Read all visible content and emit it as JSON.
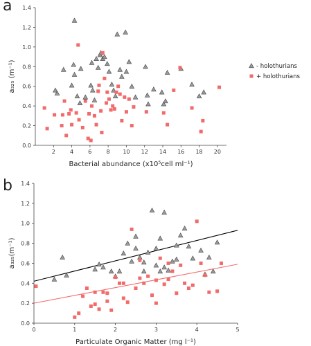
{
  "panels": {
    "a": {
      "letter": "a"
    },
    "b": {
      "letter": "b"
    }
  },
  "colors": {
    "axis": "#444444",
    "minus_fill": "#9a9a9a",
    "minus_stroke": "#444444",
    "plus_fill": "#f26b6b",
    "fit_minus": "#000000",
    "fit_plus": "#f26b6b"
  },
  "chart_data": [
    {
      "type": "scatter",
      "panel": "a",
      "title": "",
      "xlabel": "Bacterial abundance (x10⁵cell ml⁻¹)",
      "ylabel": "a₃₂₅ (m⁻¹)",
      "xlim": [
        0,
        21
      ],
      "ylim": [
        0,
        1.4
      ],
      "xticks": [
        2,
        4,
        6,
        8,
        10,
        12,
        14,
        16,
        18,
        20
      ],
      "yticks": [
        0,
        0.2,
        0.4,
        0.6,
        0.8,
        1.0,
        1.2,
        1.4
      ],
      "ytick_labels": [
        "0.0",
        "0.2",
        "0.4",
        "0.6",
        "0.8",
        "1.0",
        "1.2",
        "1.4"
      ],
      "legend_position": "right",
      "series": [
        {
          "name": "- holothurians",
          "marker": "triangle",
          "points": [
            [
              2.2,
              0.56
            ],
            [
              2.4,
              0.53
            ],
            [
              3.1,
              0.77
            ],
            [
              4.3,
              1.27
            ],
            [
              4.2,
              0.82
            ],
            [
              4.3,
              0.72
            ],
            [
              4.0,
              0.61
            ],
            [
              4.6,
              0.5
            ],
            [
              4.9,
              0.43
            ],
            [
              5.0,
              0.78
            ],
            [
              5.5,
              0.49
            ],
            [
              6.1,
              0.61
            ],
            [
              6.2,
              0.84
            ],
            [
              6.3,
              0.56
            ],
            [
              6.5,
              0.46
            ],
            [
              6.7,
              0.88
            ],
            [
              6.9,
              0.79
            ],
            [
              7.1,
              0.92
            ],
            [
              7.2,
              0.94
            ],
            [
              7.4,
              0.88
            ],
            [
              7.6,
              0.9
            ],
            [
              7.9,
              0.83
            ],
            [
              8.1,
              0.75
            ],
            [
              8.4,
              0.62
            ],
            [
              8.6,
              0.56
            ],
            [
              8.8,
              0.5
            ],
            [
              9.0,
              1.13
            ],
            [
              9.3,
              0.77
            ],
            [
              9.5,
              0.7
            ],
            [
              9.9,
              1.15
            ],
            [
              10.0,
              0.75
            ],
            [
              10.3,
              0.85
            ],
            [
              10.6,
              0.6
            ],
            [
              11.0,
              0.49
            ],
            [
              12.1,
              0.8
            ],
            [
              12.3,
              0.51
            ],
            [
              12.4,
              0.42
            ],
            [
              13.0,
              0.57
            ],
            [
              13.9,
              0.54
            ],
            [
              14.1,
              0.42
            ],
            [
              14.3,
              0.45
            ],
            [
              14.5,
              0.74
            ],
            [
              16.0,
              0.78
            ],
            [
              17.2,
              0.62
            ],
            [
              18.0,
              0.5
            ],
            [
              18.5,
              0.54
            ]
          ]
        },
        {
          "name": "+ holothurians",
          "marker": "square",
          "points": [
            [
              1.0,
              0.38
            ],
            [
              1.3,
              0.17
            ],
            [
              2.1,
              0.31
            ],
            [
              2.9,
              0.2
            ],
            [
              3.0,
              0.31
            ],
            [
              3.2,
              0.45
            ],
            [
              3.4,
              0.1
            ],
            [
              3.7,
              0.32
            ],
            [
              3.9,
              0.36
            ],
            [
              4.0,
              0.21
            ],
            [
              4.5,
              0.33
            ],
            [
              4.7,
              1.02
            ],
            [
              4.8,
              0.26
            ],
            [
              5.2,
              0.18
            ],
            [
              5.5,
              0.45
            ],
            [
              5.8,
              0.07
            ],
            [
              5.9,
              0.32
            ],
            [
              6.1,
              0.05
            ],
            [
              6.2,
              0.4
            ],
            [
              6.5,
              0.3
            ],
            [
              6.7,
              0.21
            ],
            [
              6.9,
              0.55
            ],
            [
              7.0,
              0.61
            ],
            [
              7.2,
              0.35
            ],
            [
              7.3,
              0.13
            ],
            [
              7.4,
              0.94
            ],
            [
              7.6,
              0.68
            ],
            [
              7.8,
              0.43
            ],
            [
              7.9,
              0.54
            ],
            [
              8.1,
              0.47
            ],
            [
              8.3,
              0.36
            ],
            [
              8.5,
              0.4
            ],
            [
              8.7,
              0.37
            ],
            [
              8.9,
              0.54
            ],
            [
              9.1,
              0.6
            ],
            [
              9.3,
              0.52
            ],
            [
              9.5,
              0.25
            ],
            [
              9.8,
              0.49
            ],
            [
              10.0,
              0.34
            ],
            [
              10.3,
              0.47
            ],
            [
              10.6,
              0.2
            ],
            [
              10.8,
              0.39
            ],
            [
              12.2,
              0.34
            ],
            [
              14.1,
              0.33
            ],
            [
              14.5,
              0.21
            ],
            [
              15.2,
              0.56
            ],
            [
              15.9,
              0.79
            ],
            [
              17.2,
              0.38
            ],
            [
              18.2,
              0.14
            ],
            [
              18.4,
              0.25
            ],
            [
              20.2,
              0.59
            ]
          ]
        }
      ]
    },
    {
      "type": "scatter",
      "panel": "b",
      "title": "",
      "xlabel": "Particulate Organic Matter (mg l⁻¹)",
      "ylabel": "a₃₂₅(m⁻¹)",
      "xlim": [
        0,
        5
      ],
      "ylim": [
        0,
        1.4
      ],
      "xticks": [
        0,
        1,
        2,
        3,
        4,
        5
      ],
      "yticks": [
        0,
        0.2,
        0.4,
        0.6,
        0.8,
        1.0,
        1.2,
        1.4
      ],
      "ytick_labels": [
        "0.0",
        "0.2",
        "0.4",
        "0.6",
        "0.8",
        "1.0",
        "1.2",
        "1.4"
      ],
      "series": [
        {
          "name": "- holothurians",
          "marker": "triangle",
          "fit": [
            [
              0,
              0.42
            ],
            [
              5,
              0.93
            ]
          ],
          "points": [
            [
              0.5,
              0.44
            ],
            [
              0.7,
              0.66
            ],
            [
              0.8,
              0.48
            ],
            [
              1.5,
              0.54
            ],
            [
              1.7,
              0.56
            ],
            [
              1.9,
              0.52
            ],
            [
              2.0,
              0.47
            ],
            [
              2.1,
              0.52
            ],
            [
              2.2,
              0.7
            ],
            [
              2.3,
              0.8
            ],
            [
              2.4,
              0.62
            ],
            [
              2.5,
              0.87
            ],
            [
              2.5,
              0.75
            ],
            [
              2.6,
              0.66
            ],
            [
              2.7,
              0.52
            ],
            [
              2.8,
              0.71
            ],
            [
              2.9,
              1.13
            ],
            [
              3.0,
              0.75
            ],
            [
              3.0,
              0.58
            ],
            [
              3.1,
              0.52
            ],
            [
              3.1,
              0.85
            ],
            [
              3.2,
              1.11
            ],
            [
              3.2,
              0.56
            ],
            [
              3.3,
              0.53
            ],
            [
              3.4,
              0.62
            ],
            [
              3.5,
              0.64
            ],
            [
              3.6,
              0.88
            ],
            [
              3.7,
              0.95
            ],
            [
              3.8,
              0.77
            ],
            [
              3.9,
              0.65
            ],
            [
              4.1,
              0.73
            ],
            [
              4.2,
              0.49
            ],
            [
              4.3,
              0.66
            ],
            [
              4.4,
              0.52
            ],
            [
              4.5,
              0.81
            ],
            [
              1.6,
              0.59
            ],
            [
              2.7,
              0.61
            ],
            [
              3.5,
              0.78
            ]
          ]
        },
        {
          "name": "+ holothurians",
          "marker": "square",
          "fit": [
            [
              0,
              0.2
            ],
            [
              5,
              0.59
            ]
          ],
          "points": [
            [
              0.05,
              0.37
            ],
            [
              1.0,
              0.06
            ],
            [
              1.1,
              0.1
            ],
            [
              1.2,
              0.27
            ],
            [
              1.3,
              0.35
            ],
            [
              1.4,
              0.17
            ],
            [
              1.5,
              0.19
            ],
            [
              1.5,
              0.31
            ],
            [
              1.6,
              0.14
            ],
            [
              1.7,
              0.31
            ],
            [
              1.8,
              0.3
            ],
            [
              1.8,
              0.22
            ],
            [
              1.9,
              0.13
            ],
            [
              2.0,
              0.46
            ],
            [
              2.1,
              0.4
            ],
            [
              2.2,
              0.25
            ],
            [
              2.3,
              0.21
            ],
            [
              2.4,
              0.94
            ],
            [
              2.5,
              0.35
            ],
            [
              2.6,
              0.63
            ],
            [
              2.7,
              0.4
            ],
            [
              2.8,
              0.47
            ],
            [
              2.9,
              0.28
            ],
            [
              3.0,
              0.43
            ],
            [
              3.0,
              0.2
            ],
            [
              3.1,
              0.65
            ],
            [
              3.2,
              0.39
            ],
            [
              3.3,
              0.44
            ],
            [
              3.4,
              0.52
            ],
            [
              3.5,
              0.3
            ],
            [
              3.6,
              0.58
            ],
            [
              3.7,
              0.4
            ],
            [
              3.8,
              0.35
            ],
            [
              3.9,
              0.38
            ],
            [
              4.0,
              1.02
            ],
            [
              4.1,
              0.6
            ],
            [
              4.2,
              0.48
            ],
            [
              4.3,
              0.31
            ],
            [
              4.5,
              0.32
            ],
            [
              4.6,
              0.6
            ],
            [
              2.2,
              0.4
            ],
            [
              2.6,
              0.45
            ],
            [
              3.3,
              0.6
            ]
          ]
        }
      ]
    }
  ]
}
